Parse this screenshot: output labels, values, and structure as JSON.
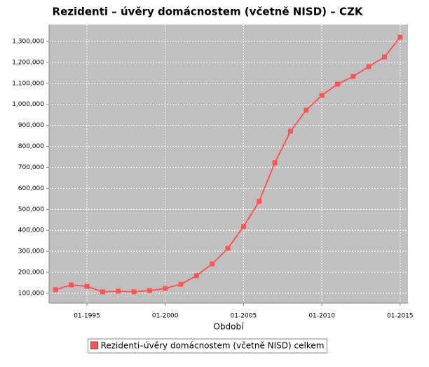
{
  "chart_data": {
    "type": "line",
    "title": "Rezidenti – úvěry domácnostem (včetně NISD) – CZK",
    "x_label": "Období",
    "x": [
      "01-1993",
      "01-1994",
      "01-1995",
      "01-1996",
      "01-1997",
      "01-1998",
      "01-1999",
      "01-2000",
      "01-2001",
      "01-2002",
      "01-2003",
      "01-2004",
      "01-2005",
      "01-2006",
      "01-2007",
      "01-2008",
      "01-2009",
      "01-2010",
      "01-2011",
      "01-2012",
      "01-2013",
      "01-2014",
      "01-2015"
    ],
    "series": [
      {
        "name": "Rezidenti–úvěry domácnostem (včetně NISD) celkem",
        "color": "#ff5555",
        "values": [
          117000,
          140000,
          133000,
          107000,
          110000,
          107000,
          113000,
          123000,
          143000,
          184000,
          240000,
          314000,
          418000,
          538000,
          722000,
          872000,
          972000,
          1043000,
          1096000,
          1133000,
          1180000,
          1226000,
          1320000
        ]
      }
    ],
    "xlim": [
      "08-1992",
      "07-2015"
    ],
    "xticks": [
      "01-1995",
      "01-2000",
      "01-2005",
      "01-2010",
      "01-2015"
    ],
    "ylim": [
      53000,
      1380000
    ],
    "yticks": [
      {
        "value": 100000,
        "label": "100,000"
      },
      {
        "value": 200000,
        "label": "200,000"
      },
      {
        "value": 300000,
        "label": "300,000"
      },
      {
        "value": 400000,
        "label": "400,000"
      },
      {
        "value": 500000,
        "label": "500,000"
      },
      {
        "value": 600000,
        "label": "600,000"
      },
      {
        "value": 700000,
        "label": "700,000"
      },
      {
        "value": 800000,
        "label": "800,000"
      },
      {
        "value": 900000,
        "label": "900,000"
      },
      {
        "value": 1000000,
        "label": "1,000,000"
      },
      {
        "value": 1100000,
        "label": "1,100,000"
      },
      {
        "value": 1200000,
        "label": "1,200,000"
      },
      {
        "value": 1300000,
        "label": "1,300,000"
      }
    ],
    "grid": true,
    "legend": "bottom"
  }
}
